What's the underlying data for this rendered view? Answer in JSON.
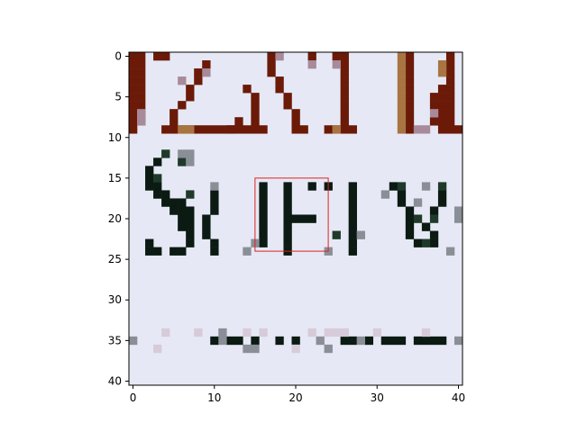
{
  "chart_data": {
    "type": "heatmap",
    "title": "",
    "xlabel": "",
    "ylabel": "",
    "xlim": [
      -0.5,
      40.5
    ],
    "ylim": [
      40.5,
      -0.5
    ],
    "x_ticks": [
      0,
      10,
      20,
      30,
      40
    ],
    "y_ticks": [
      0,
      5,
      10,
      15,
      20,
      25,
      30,
      35,
      40
    ],
    "grid": false,
    "image_size": [
      41,
      41
    ],
    "background_color": "#e6e9f5",
    "highlight_box": {
      "x0": 15,
      "y0": 15,
      "x1": 24,
      "y1": 24,
      "color": "#e02020"
    },
    "pixel_groups": [
      {
        "color": "#6b1a08",
        "cells": [
          [
            0,
            0
          ],
          [
            0,
            1
          ],
          [
            0,
            2
          ],
          [
            0,
            3
          ],
          [
            0,
            4
          ],
          [
            0,
            5
          ],
          [
            0,
            6
          ],
          [
            0,
            7
          ],
          [
            0,
            8
          ],
          [
            0,
            9
          ],
          [
            1,
            0
          ],
          [
            1,
            1
          ],
          [
            1,
            2
          ],
          [
            1,
            3
          ],
          [
            1,
            4
          ],
          [
            1,
            5
          ],
          [
            1,
            6
          ],
          [
            1,
            7
          ],
          [
            1,
            8
          ],
          [
            4,
            0
          ],
          [
            3,
            0
          ],
          [
            4,
            9
          ],
          [
            5,
            9
          ],
          [
            6,
            9
          ],
          [
            7,
            9
          ],
          [
            8,
            9
          ],
          [
            9,
            9
          ],
          [
            10,
            9
          ],
          [
            11,
            9
          ],
          [
            12,
            9
          ],
          [
            13,
            9
          ],
          [
            14,
            9
          ],
          [
            9,
            1
          ],
          [
            8,
            2
          ],
          [
            8,
            3
          ],
          [
            7,
            4
          ],
          [
            7,
            5
          ],
          [
            6,
            6
          ],
          [
            5,
            7
          ],
          [
            5,
            8
          ],
          [
            14,
            4
          ],
          [
            15,
            5
          ],
          [
            15,
            6
          ],
          [
            15,
            7
          ],
          [
            15,
            8
          ],
          [
            15,
            9
          ],
          [
            17,
            0
          ],
          [
            17,
            1
          ],
          [
            17,
            2
          ],
          [
            18,
            3
          ],
          [
            18,
            4
          ],
          [
            19,
            5
          ],
          [
            19,
            6
          ],
          [
            20,
            7
          ],
          [
            20,
            8
          ],
          [
            20,
            9
          ],
          [
            21,
            9
          ],
          [
            22,
            0
          ],
          [
            16,
            9
          ],
          [
            13,
            8
          ],
          [
            12,
            9
          ],
          [
            25,
            0
          ],
          [
            26,
            0
          ],
          [
            26,
            1
          ],
          [
            26,
            2
          ],
          [
            26,
            3
          ],
          [
            26,
            4
          ],
          [
            26,
            5
          ],
          [
            26,
            6
          ],
          [
            26,
            7
          ],
          [
            26,
            8
          ],
          [
            25,
            9
          ],
          [
            24,
            9
          ],
          [
            26,
            9
          ],
          [
            27,
            9
          ],
          [
            34,
            0
          ],
          [
            34,
            1
          ],
          [
            34,
            2
          ],
          [
            34,
            3
          ],
          [
            34,
            4
          ],
          [
            34,
            5
          ],
          [
            34,
            6
          ],
          [
            34,
            7
          ],
          [
            34,
            8
          ],
          [
            34,
            9
          ],
          [
            39,
            0
          ],
          [
            39,
            1
          ],
          [
            39,
            2
          ],
          [
            39,
            3
          ],
          [
            39,
            4
          ],
          [
            39,
            5
          ],
          [
            39,
            6
          ],
          [
            39,
            7
          ],
          [
            39,
            8
          ],
          [
            39,
            9
          ],
          [
            40,
            9
          ],
          [
            38,
            4
          ],
          [
            38,
            5
          ],
          [
            37,
            5
          ],
          [
            37,
            6
          ],
          [
            38,
            6
          ],
          [
            38,
            7
          ],
          [
            37,
            8
          ],
          [
            38,
            8
          ],
          [
            38,
            9
          ]
        ]
      },
      {
        "color": "#a87442",
        "cells": [
          [
            33,
            0
          ],
          [
            33,
            1
          ],
          [
            33,
            2
          ],
          [
            33,
            3
          ],
          [
            33,
            4
          ],
          [
            33,
            5
          ],
          [
            33,
            6
          ],
          [
            33,
            7
          ],
          [
            33,
            8
          ],
          [
            33,
            9
          ],
          [
            6,
            9
          ],
          [
            7,
            9
          ],
          [
            25,
            9
          ],
          [
            38,
            1
          ],
          [
            38,
            2
          ]
        ]
      },
      {
        "color": "#a88a9a",
        "cells": [
          [
            1,
            7
          ],
          [
            1,
            8
          ],
          [
            9,
            2
          ],
          [
            6,
            3
          ],
          [
            18,
            0
          ],
          [
            22,
            1
          ],
          [
            35,
            9
          ],
          [
            37,
            7
          ],
          [
            36,
            9
          ],
          [
            25,
            1
          ]
        ]
      },
      {
        "color": "#0b1a12",
        "cells": [
          [
            3,
            13
          ],
          [
            2,
            14
          ],
          [
            2,
            15
          ],
          [
            2,
            16
          ],
          [
            3,
            16
          ],
          [
            3,
            17
          ],
          [
            4,
            17
          ],
          [
            4,
            18
          ],
          [
            5,
            18
          ],
          [
            5,
            19
          ],
          [
            6,
            19
          ],
          [
            6,
            20
          ],
          [
            6,
            21
          ],
          [
            7,
            21
          ],
          [
            7,
            22
          ],
          [
            7,
            23
          ],
          [
            6,
            24
          ],
          [
            5,
            24
          ],
          [
            3,
            24
          ],
          [
            2,
            24
          ],
          [
            2,
            23
          ],
          [
            10,
            17
          ],
          [
            10,
            18
          ],
          [
            10,
            19
          ],
          [
            9,
            20
          ],
          [
            9,
            21
          ],
          [
            9,
            22
          ],
          [
            10,
            23
          ],
          [
            10,
            24
          ],
          [
            7,
            20
          ],
          [
            7,
            21
          ],
          [
            6,
            18
          ],
          [
            7,
            19
          ],
          [
            16,
            16
          ],
          [
            16,
            17
          ],
          [
            16,
            18
          ],
          [
            16,
            19
          ],
          [
            16,
            20
          ],
          [
            16,
            21
          ],
          [
            16,
            22
          ],
          [
            16,
            23
          ],
          [
            19,
            16
          ],
          [
            19,
            17
          ],
          [
            19,
            18
          ],
          [
            19,
            19
          ],
          [
            19,
            20
          ],
          [
            19,
            21
          ],
          [
            19,
            22
          ],
          [
            19,
            23
          ],
          [
            19,
            24
          ],
          [
            20,
            20
          ],
          [
            21,
            20
          ],
          [
            22,
            20
          ],
          [
            22,
            16
          ],
          [
            24,
            16
          ],
          [
            27,
            16
          ],
          [
            27,
            17
          ],
          [
            27,
            18
          ],
          [
            27,
            19
          ],
          [
            27,
            20
          ],
          [
            27,
            21
          ],
          [
            27,
            22
          ],
          [
            27,
            23
          ],
          [
            27,
            24
          ],
          [
            32,
            16
          ],
          [
            33,
            17
          ],
          [
            33,
            18
          ],
          [
            34,
            19
          ],
          [
            34,
            20
          ],
          [
            34,
            21
          ],
          [
            34,
            22
          ],
          [
            35,
            23
          ],
          [
            36,
            21
          ],
          [
            37,
            22
          ],
          [
            37,
            23
          ],
          [
            38,
            17
          ],
          [
            38,
            18
          ],
          [
            37,
            19
          ]
        ]
      },
      {
        "color": "#1f3a2a",
        "cells": [
          [
            4,
            12
          ],
          [
            6,
            13
          ],
          [
            7,
            17
          ],
          [
            3,
            15
          ],
          [
            25,
            22
          ],
          [
            35,
            20
          ],
          [
            36,
            23
          ],
          [
            33,
            16
          ],
          [
            38,
            16
          ],
          [
            37,
            20
          ]
        ]
      },
      {
        "color": "#8a8e96",
        "cells": [
          [
            7,
            12
          ],
          [
            7,
            13
          ],
          [
            6,
            12
          ],
          [
            15,
            23
          ],
          [
            24,
            24
          ],
          [
            14,
            24
          ],
          [
            35,
            18
          ],
          [
            40,
            19
          ],
          [
            40,
            20
          ],
          [
            39,
            24
          ],
          [
            10,
            16
          ],
          [
            31,
            17
          ],
          [
            28,
            22
          ],
          [
            36,
            16
          ]
        ]
      },
      {
        "color": "#0b1a12",
        "cells": [
          [
            10,
            35
          ],
          [
            12,
            35
          ],
          [
            13,
            35
          ],
          [
            15,
            35
          ],
          [
            18,
            35
          ],
          [
            20,
            35
          ],
          [
            26,
            35
          ],
          [
            27,
            35
          ],
          [
            29,
            35
          ],
          [
            31,
            35
          ],
          [
            32,
            35
          ],
          [
            33,
            35
          ],
          [
            35,
            35
          ],
          [
            36,
            35
          ],
          [
            37,
            35
          ],
          [
            38,
            35
          ]
        ]
      },
      {
        "color": "#8a8e96",
        "cells": [
          [
            11,
            34
          ],
          [
            11,
            35
          ],
          [
            14,
            36
          ],
          [
            15,
            36
          ],
          [
            24,
            36
          ],
          [
            28,
            35
          ],
          [
            40,
            35
          ],
          [
            23,
            35
          ],
          [
            0,
            35
          ]
        ]
      },
      {
        "color": "#d7cbd9",
        "cells": [
          [
            22,
            34
          ],
          [
            24,
            34
          ],
          [
            25,
            34
          ],
          [
            26,
            34
          ],
          [
            14,
            34
          ],
          [
            16,
            34
          ],
          [
            4,
            34
          ],
          [
            8,
            34
          ],
          [
            30,
            34
          ],
          [
            36,
            34
          ],
          [
            3,
            36
          ],
          [
            20,
            36
          ]
        ]
      }
    ]
  }
}
